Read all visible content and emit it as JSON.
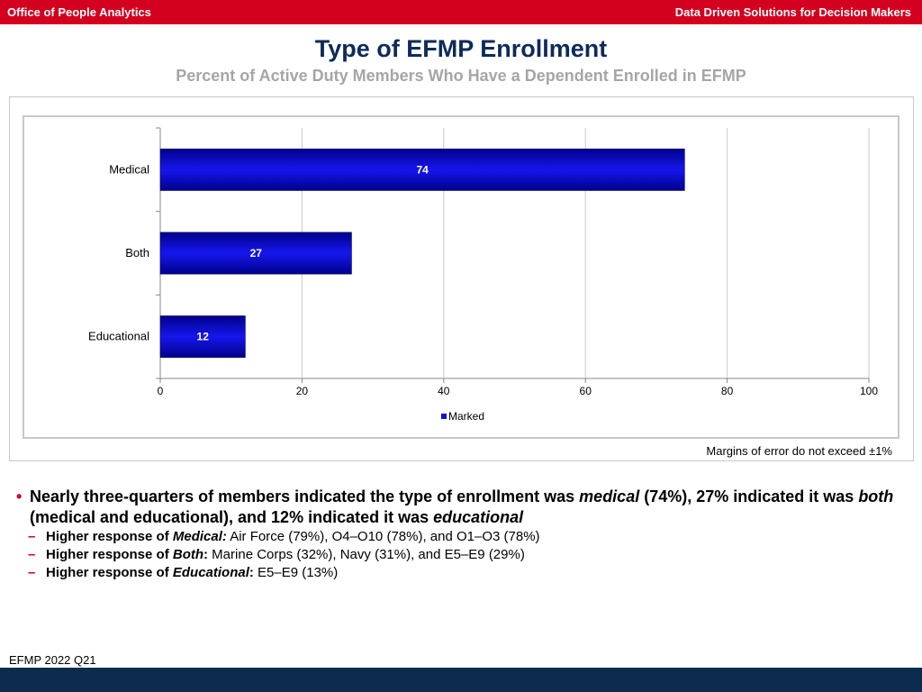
{
  "header": {
    "left": "Office of People Analytics",
    "right": "Data Driven Solutions for Decision Makers"
  },
  "title": "Type of EFMP Enrollment",
  "subtitle": "Percent of Active Duty Members Who Have a Dependent Enrolled in EFMP",
  "chart_data": {
    "type": "bar",
    "orientation": "horizontal",
    "categories": [
      "Medical",
      "Both",
      "Educational"
    ],
    "series": [
      {
        "name": "Marked",
        "values": [
          74,
          27,
          12
        ]
      }
    ],
    "xlim": [
      0,
      100
    ],
    "xticks": [
      0,
      20,
      40,
      60,
      80,
      100
    ],
    "legend": "bottom",
    "grid": true,
    "bar_color": "#1010d8"
  },
  "moe": "Margins of error do not exceed ±1%",
  "summary": {
    "p1": "Nearly three-quarters of members indicated the type of enrollment was ",
    "e1": "medical",
    "p2": " (74%), 27% indicated it was ",
    "e2": "both",
    "p3": " (medical and educational), and 12% indicated it was ",
    "e3": "educational"
  },
  "subpoints": [
    {
      "lead": "Higher response of ",
      "em": "Medical:",
      "rest": "  Air Force (79%), O4–O10 (78%), and O1–O3 (78%)"
    },
    {
      "lead": "Higher response of ",
      "em": "Both",
      "colon": ":",
      "rest": "  Marine Corps (32%), Navy (31%), and E5–E9 (29%)"
    },
    {
      "lead": "Higher response of ",
      "em": "Educational",
      "colon": ":",
      "rest": "  E5–E9 (13%)"
    }
  ],
  "footer": "EFMP 2022 Q21"
}
